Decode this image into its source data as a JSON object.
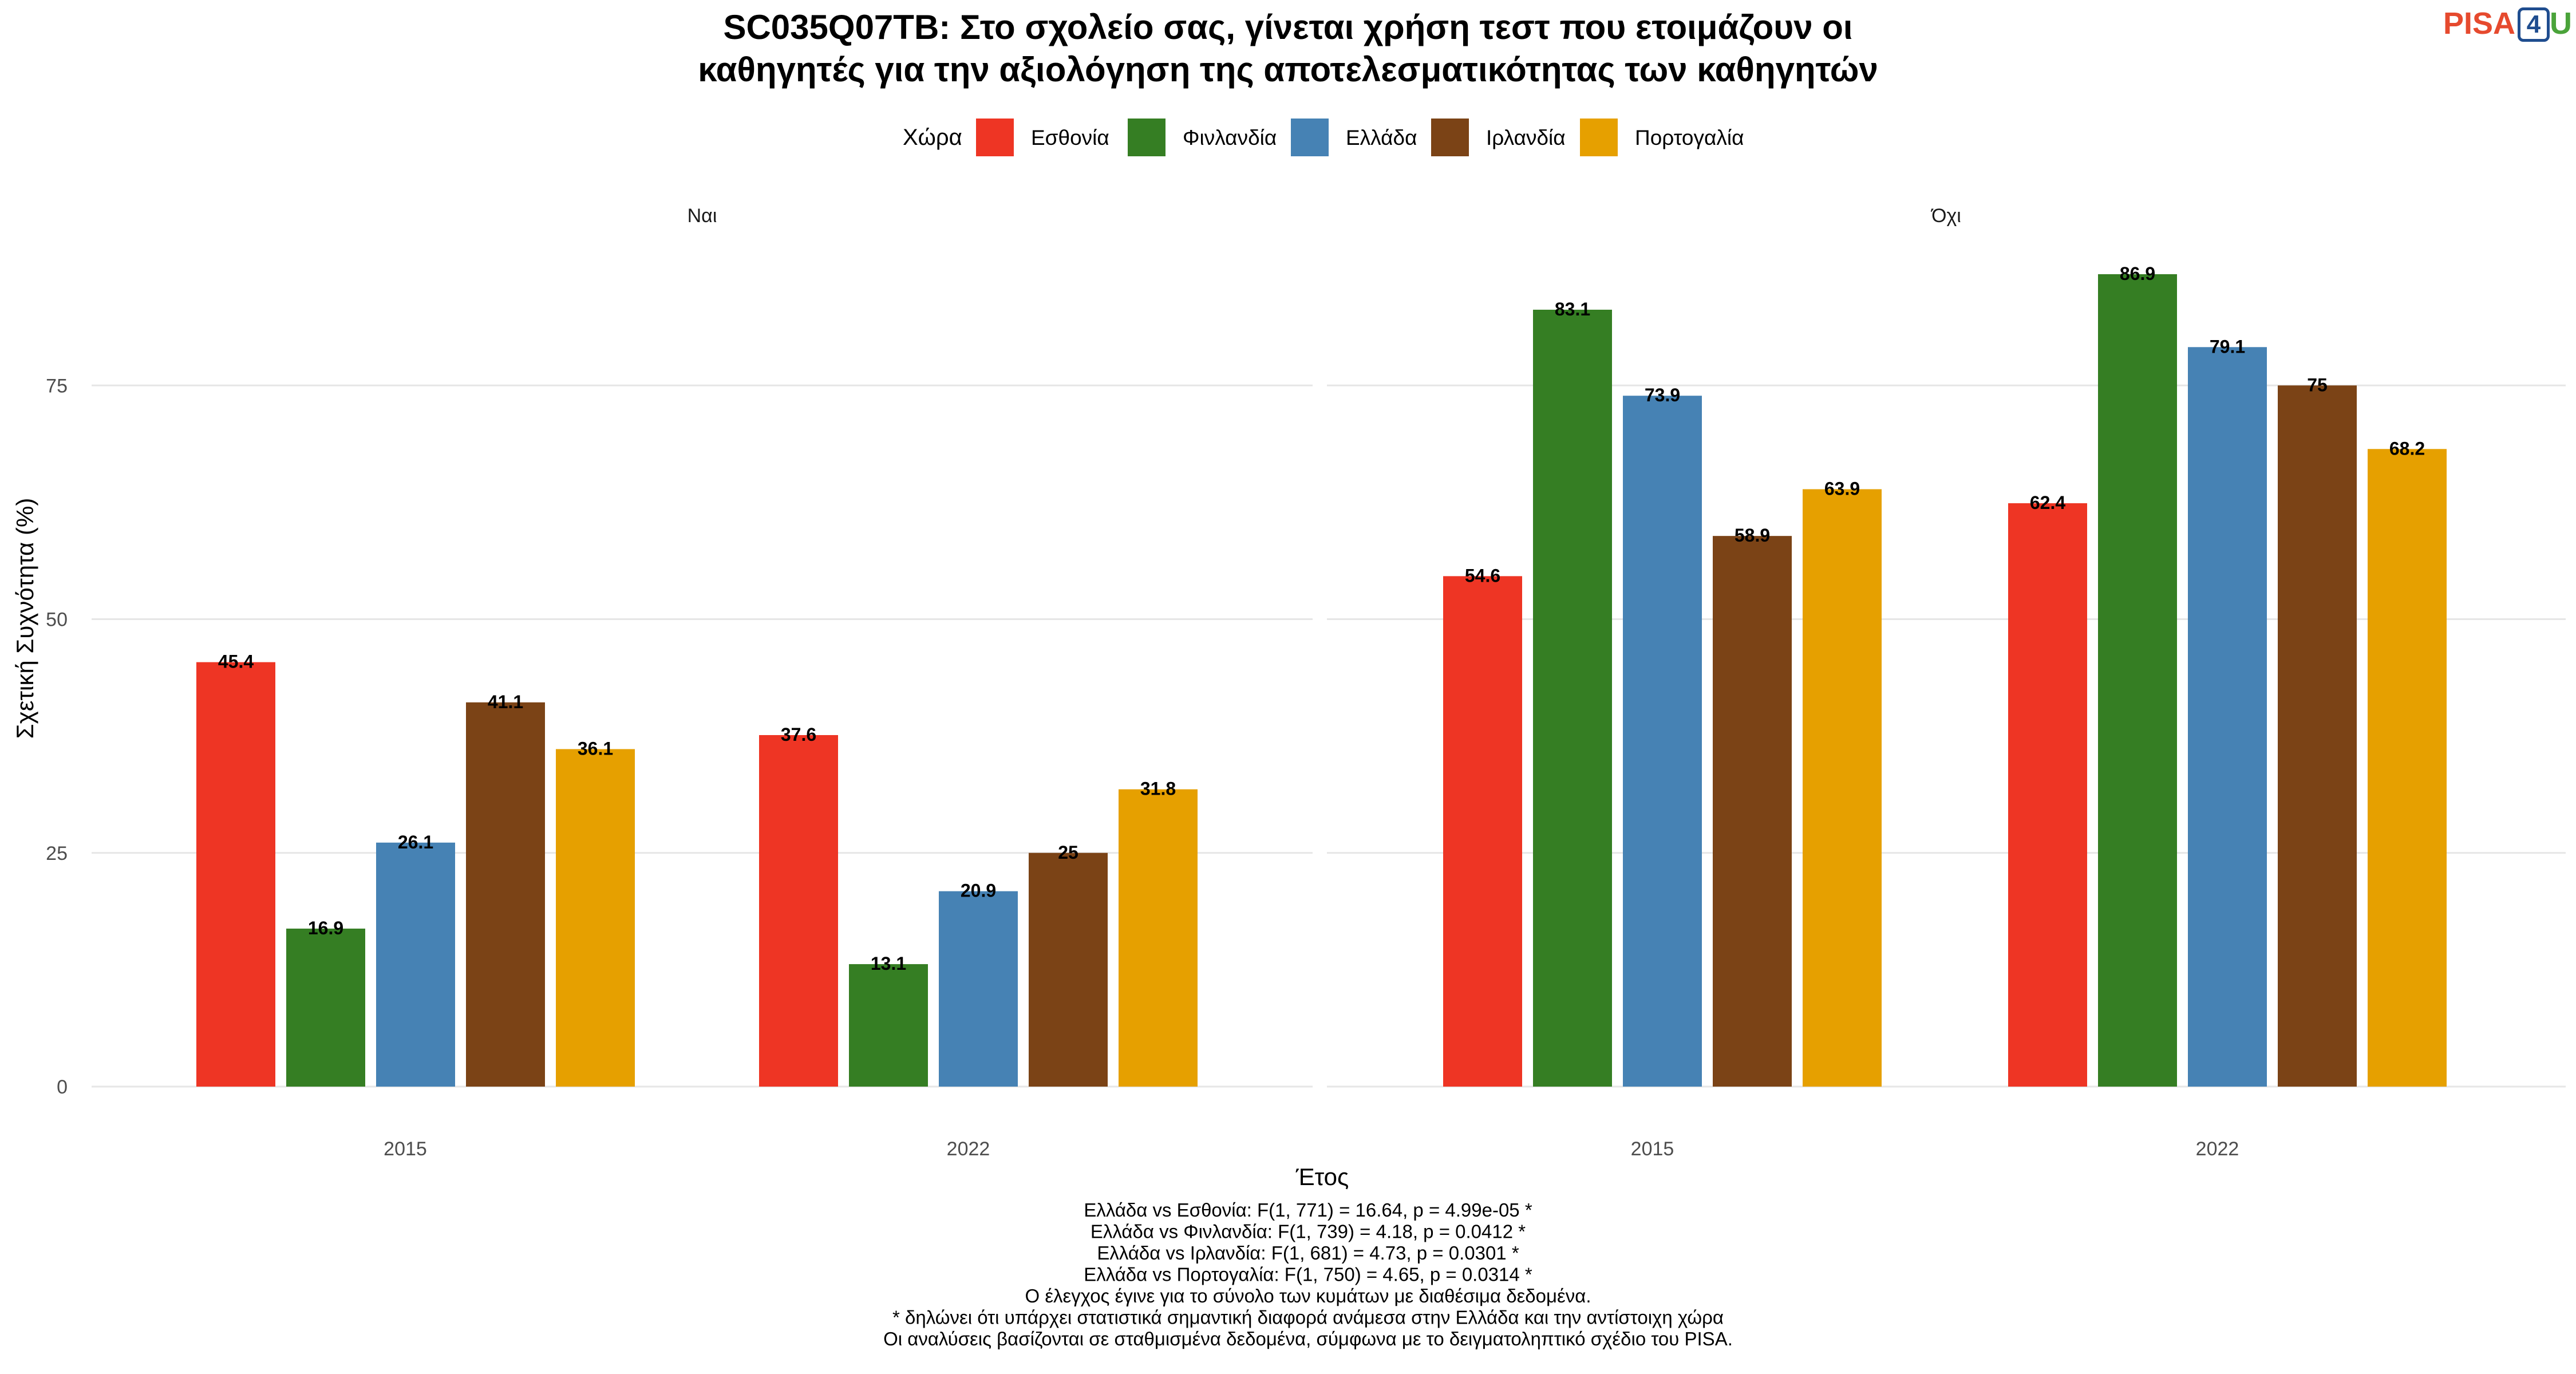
{
  "chart_data": {
    "type": "bar",
    "title": "SC035Q07TB: Στο σχολείο σας, γίνεται χρήση τεστ που ετοιμάζουν οι",
    "subtitle": "καθηγητές για την αξιολόγηση της αποτελεσματικότητας των καθηγητών",
    "xlabel": "Έτος",
    "ylabel": "Σχετική Συχνότητα (%)",
    "ylim": [
      0,
      90
    ],
    "yticks": [
      0,
      25,
      50,
      75
    ],
    "grid": true,
    "legend": {
      "title": "Χώρα",
      "placement": "top",
      "entries": [
        "Εσθονία",
        "Φινλανδία",
        "Ελλάδα",
        "Ιρλανδία",
        "Πορτογαλία"
      ],
      "colors": [
        "#ee3524",
        "#357e23",
        "#4682b4",
        "#7b4316",
        "#e6a000"
      ]
    },
    "panels": [
      {
        "label": "Ναι",
        "categories": [
          "2015",
          "2022"
        ],
        "series": [
          {
            "name": "Εσθονία",
            "values": [
              45.4,
              37.6
            ]
          },
          {
            "name": "Φινλανδία",
            "values": [
              16.9,
              13.1
            ]
          },
          {
            "name": "Ελλάδα",
            "values": [
              26.1,
              20.9
            ]
          },
          {
            "name": "Ιρλανδία",
            "values": [
              41.1,
              25
            ]
          },
          {
            "name": "Πορτογαλία",
            "values": [
              36.1,
              31.8
            ]
          }
        ]
      },
      {
        "label": "Όχι",
        "categories": [
          "2015",
          "2022"
        ],
        "series": [
          {
            "name": "Εσθονία",
            "values": [
              54.6,
              62.4
            ]
          },
          {
            "name": "Φινλανδία",
            "values": [
              83.1,
              86.9
            ]
          },
          {
            "name": "Ελλάδα",
            "values": [
              73.9,
              79.1
            ]
          },
          {
            "name": "Ιρλανδία",
            "values": [
              58.9,
              75
            ]
          },
          {
            "name": "Πορτογαλία",
            "values": [
              63.9,
              68.2
            ]
          }
        ]
      }
    ],
    "annotations": [
      "Ελλάδα vs Εσθονία: F(1, 771) = 16.64, p = 4.99e-05 *",
      "Ελλάδα vs Φινλανδία: F(1, 739) = 4.18, p = 0.0412 *",
      "Ελλάδα vs Ιρλανδία: F(1, 681) = 4.73, p = 0.0301 *",
      "Ελλάδα vs Πορτογαλία: F(1, 750) = 4.65, p = 0.0314 *",
      "Ο έλεγχος έγινε για το σύνολο των κυμάτων με διαθέσιμα δεδομένα.",
      "* δηλώνει ότι υπάρχει στατιστικά σημαντική διαφορά ανάμεσα στην Ελλάδα και την αντίστοιχη χώρα",
      "Οι αναλύσεις βασίζονται σε σταθμισμένα δεδομένα, σύμφωνα με το δειγματοληπτικό σχέδιο του PISA."
    ]
  },
  "logo": {
    "part1": "PISA",
    "part2": "4",
    "part3": "U"
  }
}
